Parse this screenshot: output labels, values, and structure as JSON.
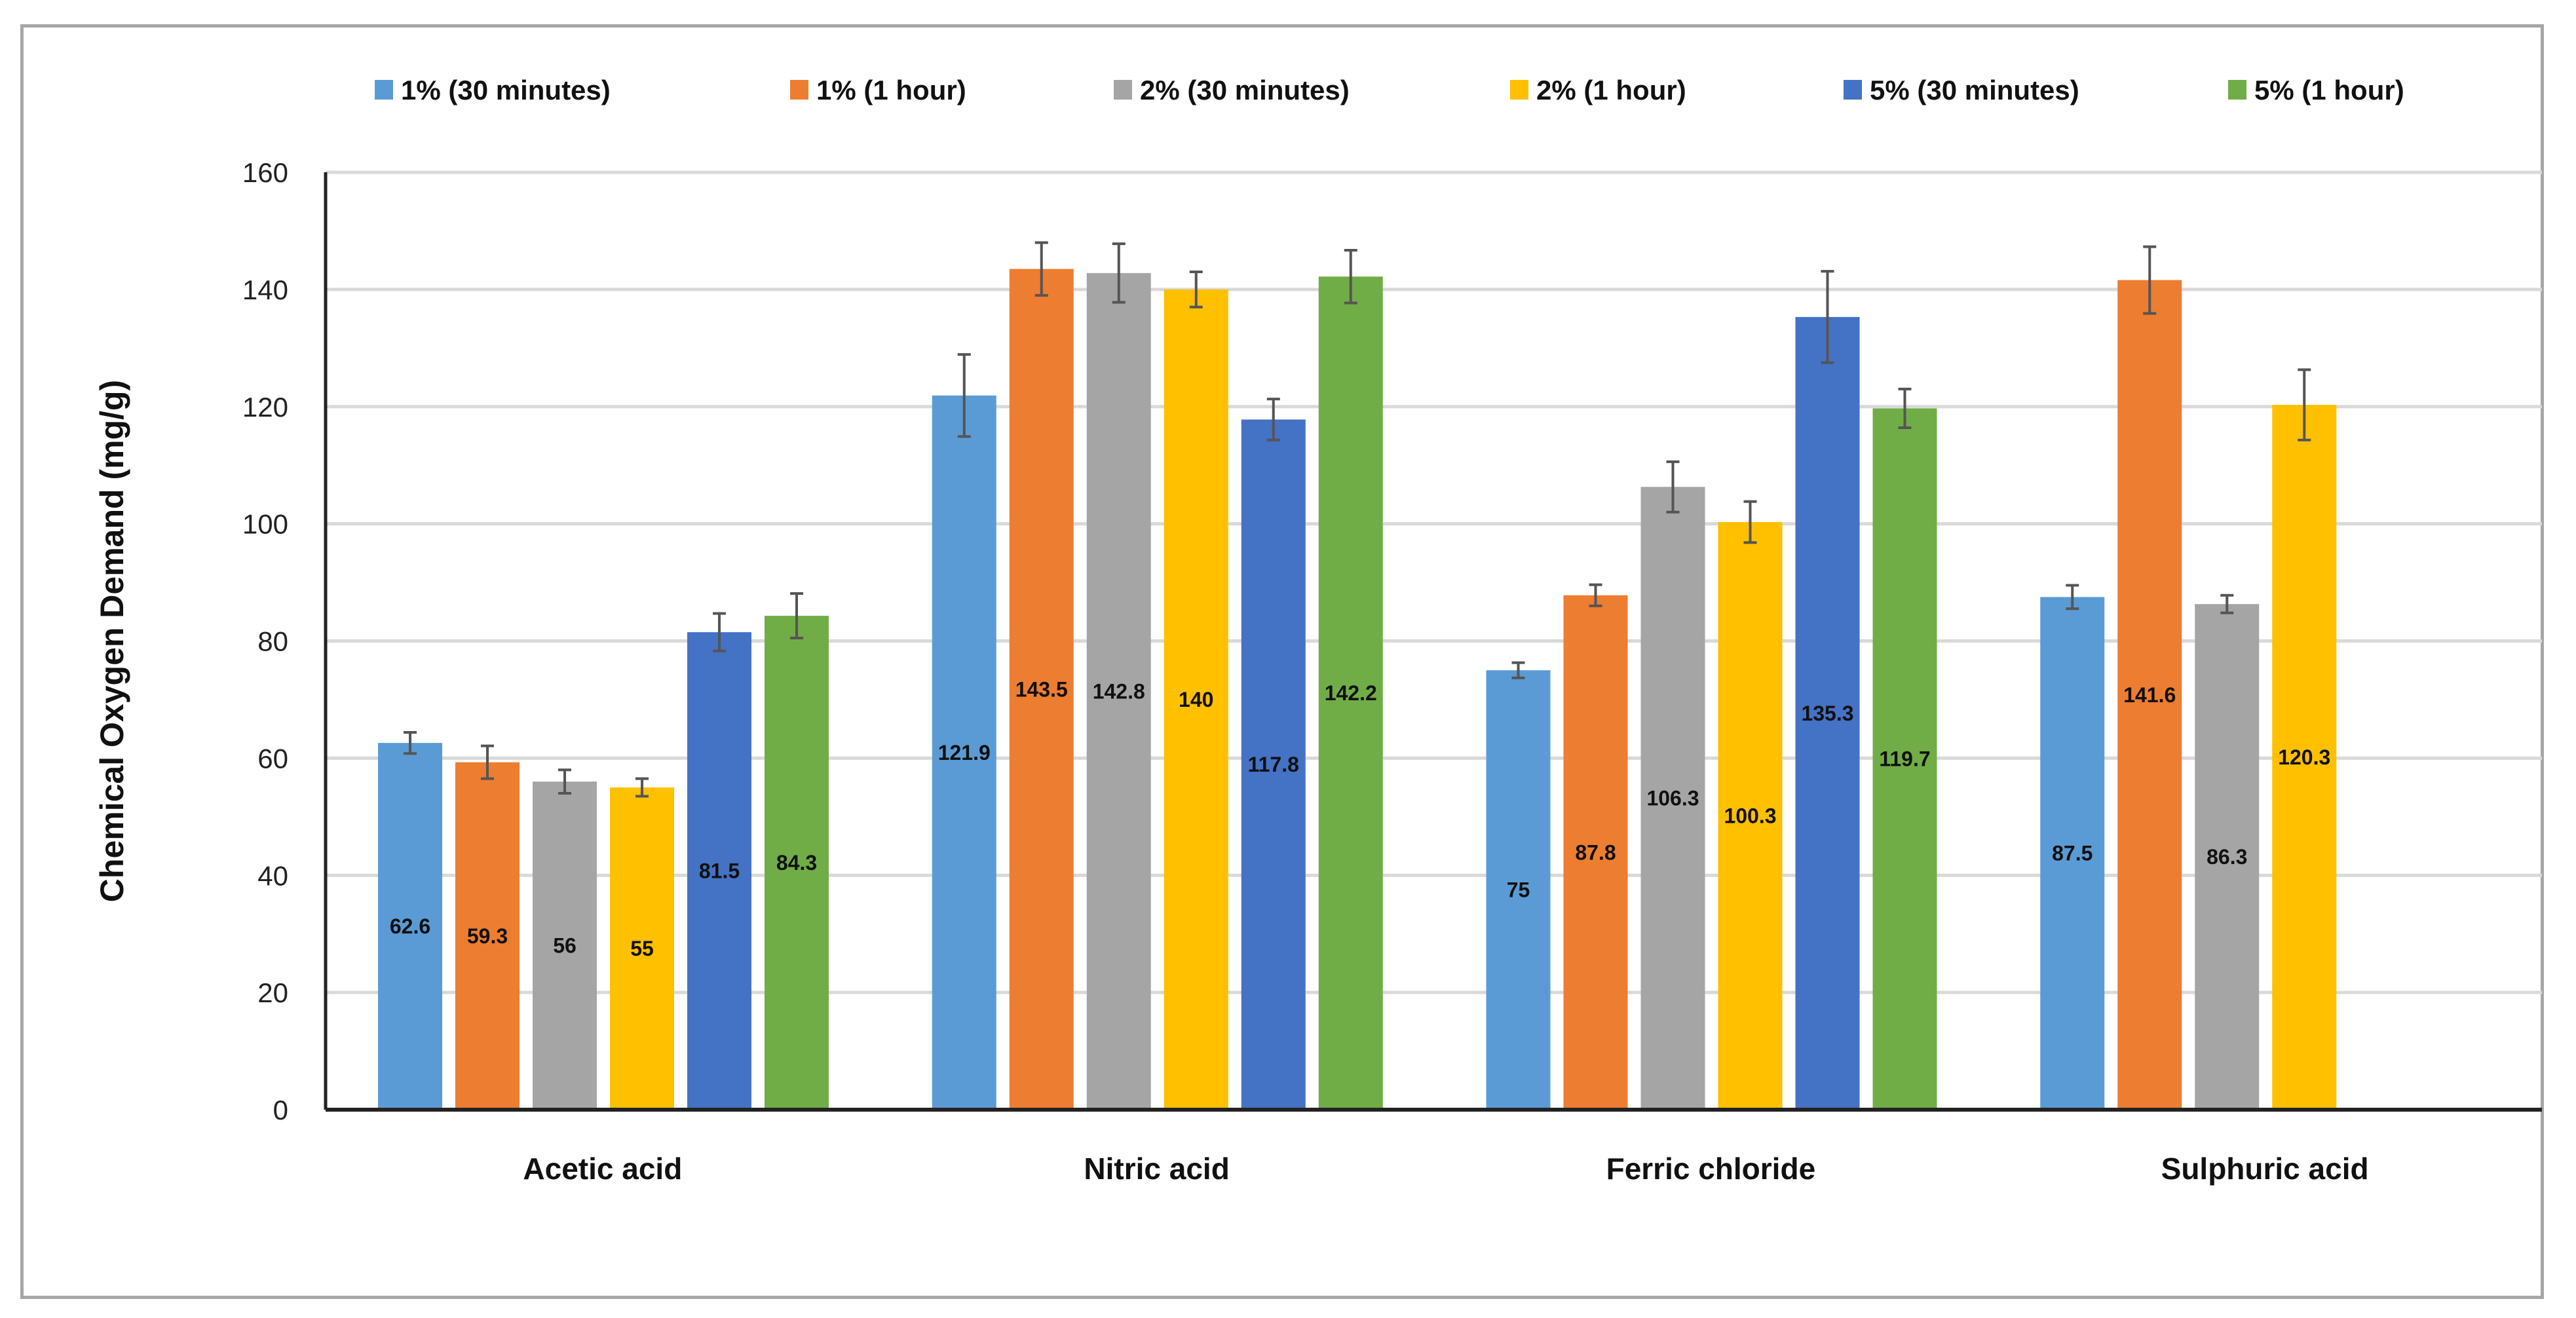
{
  "chart_data": {
    "type": "bar",
    "title": "",
    "xlabel": "",
    "ylabel": "Chemical Oxygen Demand (mg/g)",
    "ylim": [
      0,
      160
    ],
    "yticks": [
      0,
      20,
      40,
      60,
      80,
      100,
      120,
      140,
      160
    ],
    "grid": true,
    "legend_position": "top",
    "categories": [
      "Acetic acid",
      "Nitric acid",
      "Ferric chloride",
      "Sulphuric acid"
    ],
    "series": [
      {
        "name": "1% (30 minutes)",
        "color": "#5B9BD5",
        "values": [
          62.6,
          121.9,
          75,
          87.5
        ],
        "errors": [
          1.8,
          7,
          1.3,
          2
        ],
        "labels": [
          "62.6",
          "121.9",
          "75",
          "87.5"
        ]
      },
      {
        "name": "1% (1 hour)",
        "color": "#ED7D31",
        "values": [
          59.3,
          143.5,
          87.8,
          141.6
        ],
        "errors": [
          2.8,
          4.5,
          1.8,
          5.7
        ],
        "labels": [
          "59.3",
          "143.5",
          "87.8",
          "141.6"
        ]
      },
      {
        "name": "2% (30 minutes)",
        "color": "#A5A5A5",
        "values": [
          56,
          142.8,
          106.3,
          86.3
        ],
        "errors": [
          2,
          5,
          4.3,
          1.5
        ],
        "labels": [
          "56",
          "142.8",
          "106.3",
          "86.3"
        ]
      },
      {
        "name": "2% (1 hour)",
        "color": "#FFC000",
        "values": [
          55,
          140,
          100.3,
          120.3
        ],
        "errors": [
          1.5,
          3,
          3.5,
          6
        ],
        "labels": [
          "55",
          "140",
          "100.3",
          "120.3"
        ]
      },
      {
        "name": "5% (30 minutes)",
        "color": "#4472C4",
        "values": [
          81.5,
          117.8,
          135.3,
          null
        ],
        "errors": [
          3.2,
          3.5,
          7.8,
          null
        ],
        "labels": [
          "81.5",
          "117.8",
          "135.3",
          null
        ]
      },
      {
        "name": "5% (1 hour)",
        "color": "#70AD47",
        "values": [
          84.3,
          142.2,
          119.7,
          null
        ],
        "errors": [
          3.8,
          4.5,
          3.3,
          null
        ],
        "labels": [
          "84.3",
          "142.2",
          "119.7",
          null
        ]
      }
    ]
  }
}
